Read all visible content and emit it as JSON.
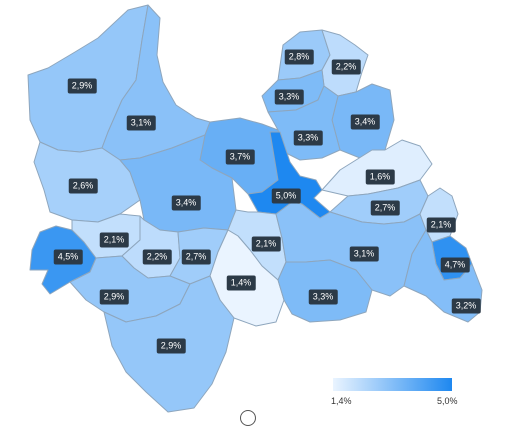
{
  "legend": {
    "min_label": "1,4%",
    "max_label": "5,0%",
    "min_value": 1.4,
    "max_value": 5.0,
    "color_low": "#eaf4ff",
    "color_high": "#1e88f0"
  },
  "outline_color": "#8ea6bd",
  "regions": [
    {
      "id": "northwest",
      "label": "2,9%",
      "value": 2.9
    },
    {
      "id": "north-central",
      "label": "3,1%",
      "value": 3.1
    },
    {
      "id": "north-a",
      "label": "2,8%",
      "value": 2.8
    },
    {
      "id": "north-b",
      "label": "2,2%",
      "value": 2.2
    },
    {
      "id": "north-c",
      "label": "3,3%",
      "value": 3.3
    },
    {
      "id": "north-d",
      "label": "3,4%",
      "value": 3.4
    },
    {
      "id": "north-e",
      "label": "3,3%",
      "value": 3.3
    },
    {
      "id": "center-west",
      "label": "3,7%",
      "value": 3.7
    },
    {
      "id": "center",
      "label": "5,0%",
      "value": 5.0
    },
    {
      "id": "east-light",
      "label": "1,6%",
      "value": 1.6
    },
    {
      "id": "east-mid",
      "label": "2,7%",
      "value": 2.7
    },
    {
      "id": "west",
      "label": "2,6%",
      "value": 2.6
    },
    {
      "id": "center-left",
      "label": "3,4%",
      "value": 3.4
    },
    {
      "id": "southwest-dark",
      "label": "4,5%",
      "value": 4.5
    },
    {
      "id": "south-a",
      "label": "2,1%",
      "value": 2.1
    },
    {
      "id": "south-b",
      "label": "2,2%",
      "value": 2.2
    },
    {
      "id": "south-c",
      "label": "2,7%",
      "value": 2.7
    },
    {
      "id": "south-d",
      "label": "2,1%",
      "value": 2.1
    },
    {
      "id": "south-e",
      "label": "1,4%",
      "value": 1.4
    },
    {
      "id": "south-f",
      "label": "3,1%",
      "value": 3.1
    },
    {
      "id": "far-east-a",
      "label": "2,1%",
      "value": 2.1
    },
    {
      "id": "far-east-dark",
      "label": "4,7%",
      "value": 4.7
    },
    {
      "id": "southeast",
      "label": "3,2%",
      "value": 3.2
    },
    {
      "id": "south-g",
      "label": "3,3%",
      "value": 3.3
    },
    {
      "id": "southwest",
      "label": "2,9%",
      "value": 2.9
    },
    {
      "id": "south",
      "label": "2,9%",
      "value": 2.9
    }
  ]
}
